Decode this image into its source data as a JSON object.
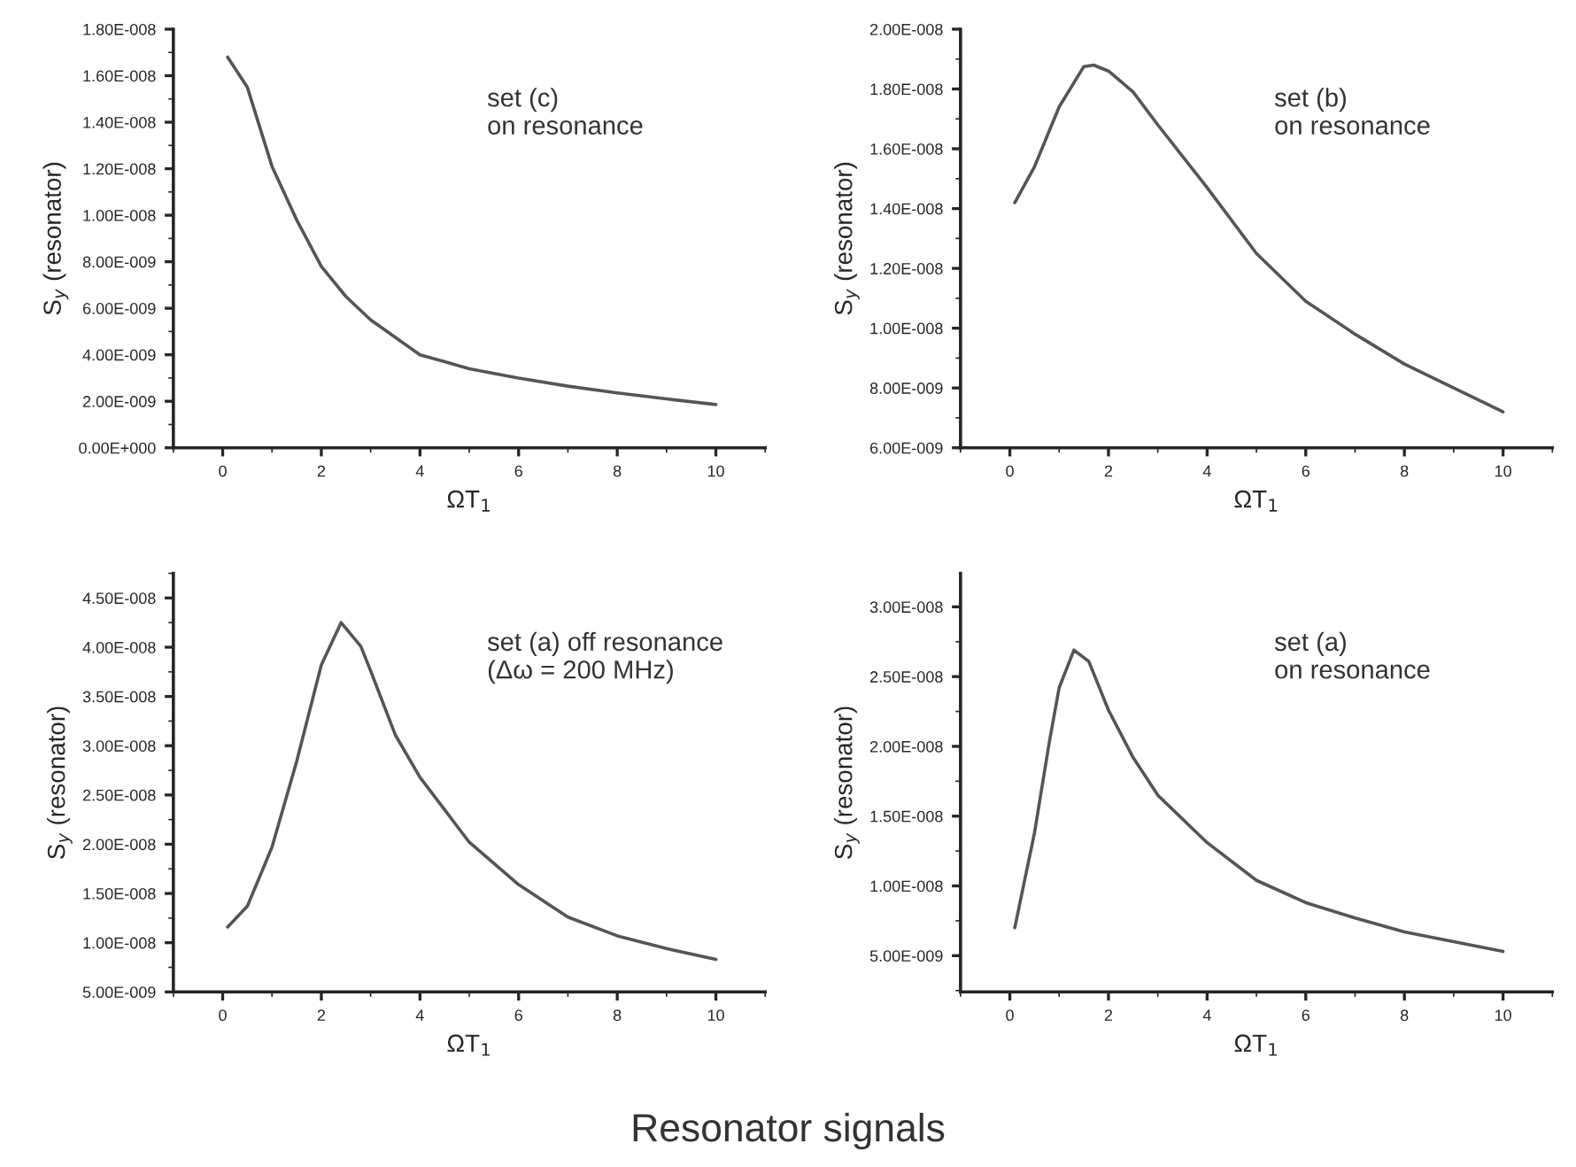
{
  "chart_data": [
    {
      "type": "line",
      "xlabel": "ΩT$_{1}$",
      "ylabel": "S$_{y}$ (resonator)",
      "annotations": [
        "set (c)\non resonance"
      ],
      "xlim": [
        -1,
        11
      ],
      "xticks": [
        0,
        2,
        4,
        6,
        8,
        10
      ],
      "ylim": [
        0,
        1.8e-08
      ],
      "yticks": [
        {
          "value": 0,
          "label": "0.00E+000"
        },
        {
          "value": 2e-09,
          "label": "2.00E-009"
        },
        {
          "value": 4e-09,
          "label": "4.00E-009"
        },
        {
          "value": 6e-09,
          "label": "6.00E-009"
        },
        {
          "value": 8e-09,
          "label": "8.00E-009"
        },
        {
          "value": 1e-08,
          "label": "1.00E-008"
        },
        {
          "value": 1.2e-08,
          "label": "1.20E-008"
        },
        {
          "value": 1.4e-08,
          "label": "1.40E-008"
        },
        {
          "value": 1.6e-08,
          "label": "1.60E-008"
        },
        {
          "value": 1.8e-08,
          "label": "1.80E-008"
        }
      ],
      "grid": false,
      "legend": false,
      "series": [
        {
          "color": "#555555",
          "x": [
            0.1,
            0.5,
            1,
            1.5,
            2,
            2.5,
            3,
            4,
            5,
            6,
            7,
            8,
            9,
            10
          ],
          "values": [
            1.68e-08,
            1.55e-08,
            1.21e-08,
            9.8e-09,
            7.8e-09,
            6.5e-09,
            5.5e-09,
            4e-09,
            3.4e-09,
            3e-09,
            2.65e-09,
            2.36e-09,
            2.1e-09,
            1.86e-09
          ]
        }
      ]
    },
    {
      "type": "line",
      "xlabel": "ΩT$_{1}$",
      "ylabel": "S$_{y}$ (resonator)",
      "annotations": [
        "set (b)\non resonance"
      ],
      "xlim": [
        -1,
        11
      ],
      "xticks": [
        0,
        2,
        4,
        6,
        8,
        10
      ],
      "ylim": [
        6e-09,
        2e-08
      ],
      "yticks": [
        {
          "value": 6e-09,
          "label": "6.00E-009"
        },
        {
          "value": 8e-09,
          "label": "8.00E-009"
        },
        {
          "value": 1e-08,
          "label": "1.00E-008"
        },
        {
          "value": 1.2e-08,
          "label": "1.20E-008"
        },
        {
          "value": 1.4e-08,
          "label": "1.40E-008"
        },
        {
          "value": 1.6e-08,
          "label": "1.60E-008"
        },
        {
          "value": 1.8e-08,
          "label": "1.80E-008"
        },
        {
          "value": 2e-08,
          "label": "2.00E-008"
        }
      ],
      "grid": false,
      "legend": false,
      "series": [
        {
          "color": "#555555",
          "x": [
            0.1,
            0.5,
            1,
            1.5,
            1.7,
            2,
            2.5,
            3,
            4,
            5,
            6,
            7,
            8,
            9,
            10
          ],
          "values": [
            1.42e-08,
            1.54e-08,
            1.74e-08,
            1.875e-08,
            1.88e-08,
            1.86e-08,
            1.79e-08,
            1.68e-08,
            1.47e-08,
            1.25e-08,
            1.09e-08,
            9.8e-09,
            8.8e-09,
            8e-09,
            7.2e-09
          ]
        }
      ]
    },
    {
      "type": "line",
      "xlabel": "ΩT$_{1}$",
      "ylabel": "S$_{y}$ (resonator)",
      "annotations": [
        "set (a) off resonance\n(Δω = 200 MHz)"
      ],
      "xlim": [
        -1,
        11
      ],
      "xticks": [
        0,
        2,
        4,
        6,
        8,
        10
      ],
      "ylim": [
        5e-09,
        4.75e-08
      ],
      "yticks": [
        {
          "value": 5e-09,
          "label": "5.00E-009"
        },
        {
          "value": 1e-08,
          "label": "1.00E-008"
        },
        {
          "value": 1.5e-08,
          "label": "1.50E-008"
        },
        {
          "value": 2e-08,
          "label": "2.00E-008"
        },
        {
          "value": 2.5e-08,
          "label": "2.50E-008"
        },
        {
          "value": 3e-08,
          "label": "3.00E-008"
        },
        {
          "value": 3.5e-08,
          "label": "3.50E-008"
        },
        {
          "value": 4e-08,
          "label": "4.00E-008"
        },
        {
          "value": 4.5e-08,
          "label": "4.50E-008"
        }
      ],
      "grid": false,
      "legend": false,
      "series": [
        {
          "color": "#555555",
          "x": [
            0.1,
            0.5,
            1,
            1.5,
            2,
            2.4,
            2.8,
            3,
            3.5,
            4,
            5,
            6,
            7,
            8,
            9,
            10
          ],
          "values": [
            1.16e-08,
            1.37e-08,
            1.97e-08,
            2.84e-08,
            3.82e-08,
            4.25e-08,
            4.01e-08,
            3.76e-08,
            3.11e-08,
            2.68e-08,
            2.02e-08,
            1.59e-08,
            1.26e-08,
            1.07e-08,
            9.4e-09,
            8.3e-09
          ]
        }
      ]
    },
    {
      "type": "line",
      "xlabel": "ΩT$_{1}$",
      "ylabel": "S$_{y}$ (resonator)",
      "annotations": [
        "set (a)\non resonance",
        "Resonator signals"
      ],
      "xlim": [
        -1,
        11
      ],
      "xticks": [
        0,
        2,
        4,
        6,
        8,
        10
      ],
      "ylim": [
        2.4e-09,
        3.24e-08
      ],
      "yticks": [
        {
          "value": 5e-09,
          "label": "5.00E-009"
        },
        {
          "value": 1e-08,
          "label": "1.00E-008"
        },
        {
          "value": 1.5e-08,
          "label": "1.50E-008"
        },
        {
          "value": 2e-08,
          "label": "2.00E-008"
        },
        {
          "value": 2.5e-08,
          "label": "2.50E-008"
        },
        {
          "value": 3e-08,
          "label": "3.00E-008"
        }
      ],
      "grid": false,
      "legend": false,
      "series": [
        {
          "color": "#555555",
          "x": [
            0.1,
            0.5,
            0.8,
            1,
            1.3,
            1.6,
            2,
            2.5,
            3,
            4,
            5,
            6,
            7,
            8,
            9,
            10
          ],
          "values": [
            7e-09,
            1.38e-08,
            2.03e-08,
            2.42e-08,
            2.69e-08,
            2.61e-08,
            2.26e-08,
            1.92e-08,
            1.65e-08,
            1.31e-08,
            1.04e-08,
            8.8e-09,
            7.7e-09,
            6.7e-09,
            6e-09,
            5.3e-09
          ]
        }
      ]
    }
  ]
}
